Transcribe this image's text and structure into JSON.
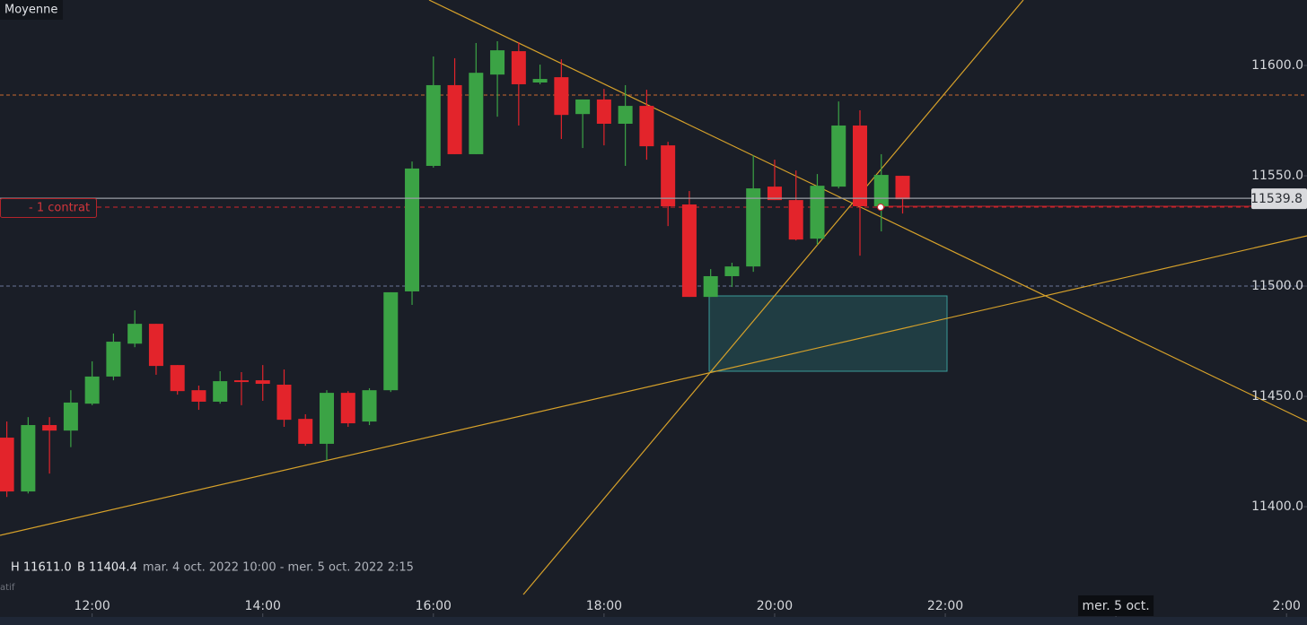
{
  "chart_data": {
    "type": "candlestick",
    "indicator_label": "Moyenne",
    "position_label": "- 1 contrat",
    "side_label": "atif",
    "info": {
      "high": "H 11611.0",
      "low": "B 11404.4",
      "range": "mar. 4 oct. 2022 10:00 - mer. 5 oct. 2022 2:15"
    },
    "last_price": 11539.8,
    "up_color": "#3ba345",
    "down_color": "#e3242b",
    "x": [
      11,
      11.25,
      11.5,
      11.75,
      12,
      12.25,
      12.5,
      12.75,
      13,
      13.25,
      13.5,
      13.75,
      14,
      14.25,
      14.5,
      14.75,
      15,
      15.25,
      15.5,
      15.75,
      16,
      16.25,
      16.5,
      16.75,
      17,
      17.25,
      17.5,
      17.75,
      18,
      18.25,
      18.5,
      18.75,
      19,
      19.25,
      19.5,
      19.75,
      20,
      20.25,
      20.5,
      20.75,
      21,
      21.25,
      21.5
    ],
    "open": [
      11431.3,
      11406.9,
      11437.0,
      11434.5,
      11446.7,
      11459.0,
      11473.9,
      11482.9,
      11464.2,
      11452.8,
      11447.6,
      11457.3,
      11457.3,
      11455.3,
      11439.8,
      11428.5,
      11451.6,
      11438.6,
      11452.8,
      11497.6,
      11554.5,
      11591.1,
      11559.8,
      11595.9,
      11606.5,
      11592.3,
      11594.7,
      11578.0,
      11584.6,
      11573.6,
      11581.7,
      11563.8,
      11537.0,
      11495.1,
      11504.5,
      11508.9,
      11545.1,
      11539.0,
      11521.5,
      11545.1,
      11572.8,
      11536.2,
      11550.0
    ],
    "high": [
      11438.6,
      11440.6,
      11440.6,
      11452.8,
      11465.9,
      11478.5,
      11489.0,
      11482.9,
      11464.2,
      11454.9,
      11461.4,
      11461.0,
      11464.2,
      11462.2,
      11441.9,
      11452.8,
      11452.4,
      11453.7,
      11497.2,
      11556.5,
      11604.1,
      11603.3,
      11610.2,
      11611.0,
      11610.6,
      11600.4,
      11602.8,
      11584.6,
      11589.4,
      11591.1,
      11589.0,
      11565.4,
      11543.1,
      11507.7,
      11510.6,
      11559.3,
      11557.3,
      11552.4,
      11550.8,
      11583.7,
      11579.7,
      11559.8,
      11550.0
    ],
    "low": [
      11404.4,
      11406.0,
      11415.0,
      11427.0,
      11446.0,
      11457.3,
      11472.3,
      11459.8,
      11450.8,
      11443.9,
      11446.7,
      11446.0,
      11448.0,
      11436.2,
      11427.6,
      11421.0,
      11436.2,
      11437.0,
      11452.0,
      11491.5,
      11553.7,
      11559.8,
      11559.8,
      11576.8,
      11572.8,
      11591.5,
      11566.7,
      11562.6,
      11563.8,
      11554.5,
      11557.3,
      11527.2,
      11495.1,
      11495.1,
      11499.6,
      11506.5,
      11539.0,
      11520.7,
      11518.7,
      11544.3,
      11513.8,
      11524.8,
      11532.9
    ],
    "close": [
      11406.9,
      11437.0,
      11434.5,
      11447.2,
      11459.0,
      11474.8,
      11482.9,
      11463.8,
      11452.4,
      11447.6,
      11456.9,
      11456.5,
      11455.7,
      11439.4,
      11428.5,
      11451.6,
      11437.8,
      11452.8,
      11497.2,
      11553.3,
      11591.1,
      11559.8,
      11596.7,
      11606.9,
      11591.5,
      11593.9,
      11577.6,
      11584.6,
      11573.6,
      11581.7,
      11563.4,
      11536.2,
      11495.1,
      11504.5,
      11508.9,
      11544.3,
      11539.0,
      11521.1,
      11545.5,
      11572.8,
      11536.2,
      11550.4,
      11539.4
    ],
    "xlim": [
      10.92,
      26.24
    ],
    "xticks": [
      {
        "value": 12,
        "label": "12:00"
      },
      {
        "value": 14,
        "label": "14:00"
      },
      {
        "value": 16,
        "label": "16:00"
      },
      {
        "value": 18,
        "label": "18:00"
      },
      {
        "value": 20,
        "label": "20:00"
      },
      {
        "value": 22,
        "label": "22:00"
      },
      {
        "value": 24,
        "label": "mer. 5 oct."
      },
      {
        "value": 26,
        "label": "2:00"
      }
    ],
    "ylim": [
      11361.4,
      11629.7
    ],
    "yticks": [
      {
        "value": 11400,
        "label": "11400.0"
      },
      {
        "value": 11450,
        "label": "11450.0"
      },
      {
        "value": 11500,
        "label": "11500.0"
      },
      {
        "value": 11550,
        "label": "11550.0"
      },
      {
        "value": 11600,
        "label": "11600.0"
      }
    ]
  }
}
